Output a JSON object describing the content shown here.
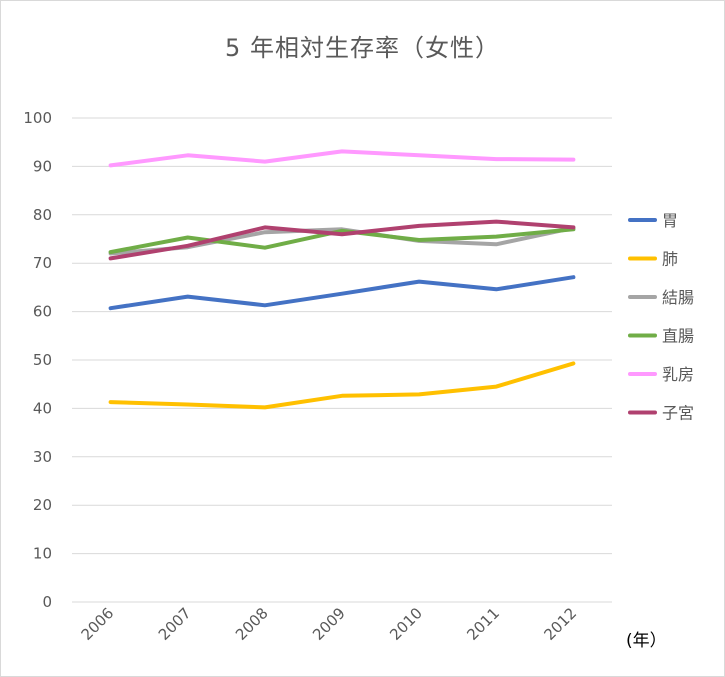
{
  "chart_data": {
    "type": "line",
    "title": "5 年相対生存率（女性）",
    "x_unit_label": "(年）",
    "categories": [
      "2006",
      "2007",
      "2008",
      "2009",
      "2010",
      "2011",
      "2012"
    ],
    "ylim": [
      0,
      100
    ],
    "yticks": [
      0,
      10,
      20,
      30,
      40,
      50,
      60,
      70,
      80,
      90,
      100
    ],
    "grid": true,
    "legend_position": "right",
    "series": [
      {
        "name": "胃",
        "color": "#4472C4",
        "values": [
          60.7,
          63.1,
          61.3,
          63.7,
          66.2,
          64.6,
          67.1
        ]
      },
      {
        "name": "肺",
        "color": "#FFC000",
        "values": [
          41.3,
          40.8,
          40.2,
          42.6,
          42.9,
          44.5,
          49.3
        ]
      },
      {
        "name": "結腸",
        "color": "#A5A5A5",
        "values": [
          72.0,
          73.3,
          76.4,
          77.0,
          74.6,
          73.9,
          77.3
        ]
      },
      {
        "name": "直腸",
        "color": "#70AD47",
        "values": [
          72.3,
          75.3,
          73.2,
          76.7,
          74.8,
          75.5,
          77.0
        ]
      },
      {
        "name": "乳房",
        "color": "#FF99FF",
        "values": [
          90.2,
          92.3,
          91.0,
          93.1,
          92.3,
          91.5,
          91.4
        ]
      },
      {
        "name": "子宮",
        "color": "#B0416F",
        "values": [
          71.0,
          73.6,
          77.4,
          76.0,
          77.7,
          78.6,
          77.4
        ]
      }
    ]
  }
}
